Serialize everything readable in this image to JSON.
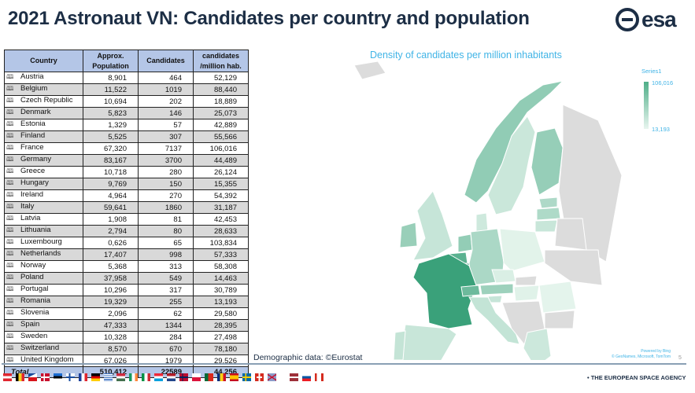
{
  "title": "2021 Astronaut VN: Candidates per country and population",
  "logo_text": "esa",
  "table": {
    "headers": [
      "Country",
      "Approx. Population",
      "Candidates",
      "candidates /million hab."
    ],
    "rows": [
      [
        "Austria",
        "8,901",
        "464",
        "52,129"
      ],
      [
        "Belgium",
        "11,522",
        "1019",
        "88,440"
      ],
      [
        "Czech Republic",
        "10,694",
        "202",
        "18,889"
      ],
      [
        "Denmark",
        "5,823",
        "146",
        "25,073"
      ],
      [
        "Estonia",
        "1,329",
        "57",
        "42,889"
      ],
      [
        "Finland",
        "5,525",
        "307",
        "55,566"
      ],
      [
        "France",
        "67,320",
        "7137",
        "106,016"
      ],
      [
        "Germany",
        "83,167",
        "3700",
        "44,489"
      ],
      [
        "Greece",
        "10,718",
        "280",
        "26,124"
      ],
      [
        "Hungary",
        "9,769",
        "150",
        "15,355"
      ],
      [
        "Ireland",
        "4,964",
        "270",
        "54,392"
      ],
      [
        "Italy",
        "59,641",
        "1860",
        "31,187"
      ],
      [
        "Latvia",
        "1,908",
        "81",
        "42,453"
      ],
      [
        "Lithuania",
        "2,794",
        "80",
        "28,633"
      ],
      [
        "Luxembourg",
        "0,626",
        "65",
        "103,834"
      ],
      [
        "Netherlands",
        "17,407",
        "998",
        "57,333"
      ],
      [
        "Norway",
        "5,368",
        "313",
        "58,308"
      ],
      [
        "Poland",
        "37,958",
        "549",
        "14,463"
      ],
      [
        "Portugal",
        "10,296",
        "317",
        "30,789"
      ],
      [
        "Romania",
        "19,329",
        "255",
        "13,193"
      ],
      [
        "Slovenia",
        "2,096",
        "62",
        "29,580"
      ],
      [
        "Spain",
        "47,333",
        "1344",
        "28,395"
      ],
      [
        "Sweden",
        "10,328",
        "284",
        "27,498"
      ],
      [
        "Switzerland",
        "8,570",
        "670",
        "78,180"
      ],
      [
        "United Kingdom",
        "67,026",
        "1979",
        "29,526"
      ]
    ],
    "total": [
      "Total",
      "510,412",
      "22589",
      "44,256"
    ]
  },
  "map": {
    "title": "Density of candidates per million inhabitants",
    "legend_title": "Series1",
    "legend_max": "106,016",
    "legend_min": "13,193",
    "color_max": "#3aa17a",
    "color_min": "#e4f4ec",
    "color_nodata": "#dcdcdc",
    "attribution_1": "Powered by Bing",
    "attribution_2": "© GeoNames, Microsoft, TomTom"
  },
  "footer": {
    "source": "Demographic data: ©Eurostat",
    "page_number": "5",
    "agency": "• THE EUROPEAN SPACE AGENCY",
    "flags": [
      "austria",
      "belgium",
      "czech",
      "denmark",
      "estonia",
      "finland",
      "france",
      "germany",
      "greece",
      "hungary",
      "ireland",
      "italy",
      "luxembourg",
      "netherlands",
      "norway",
      "poland",
      "portugal",
      "romania",
      "spain",
      "sweden",
      "switzerland",
      "uk",
      "latvia",
      "slovenia",
      "canada"
    ]
  }
}
